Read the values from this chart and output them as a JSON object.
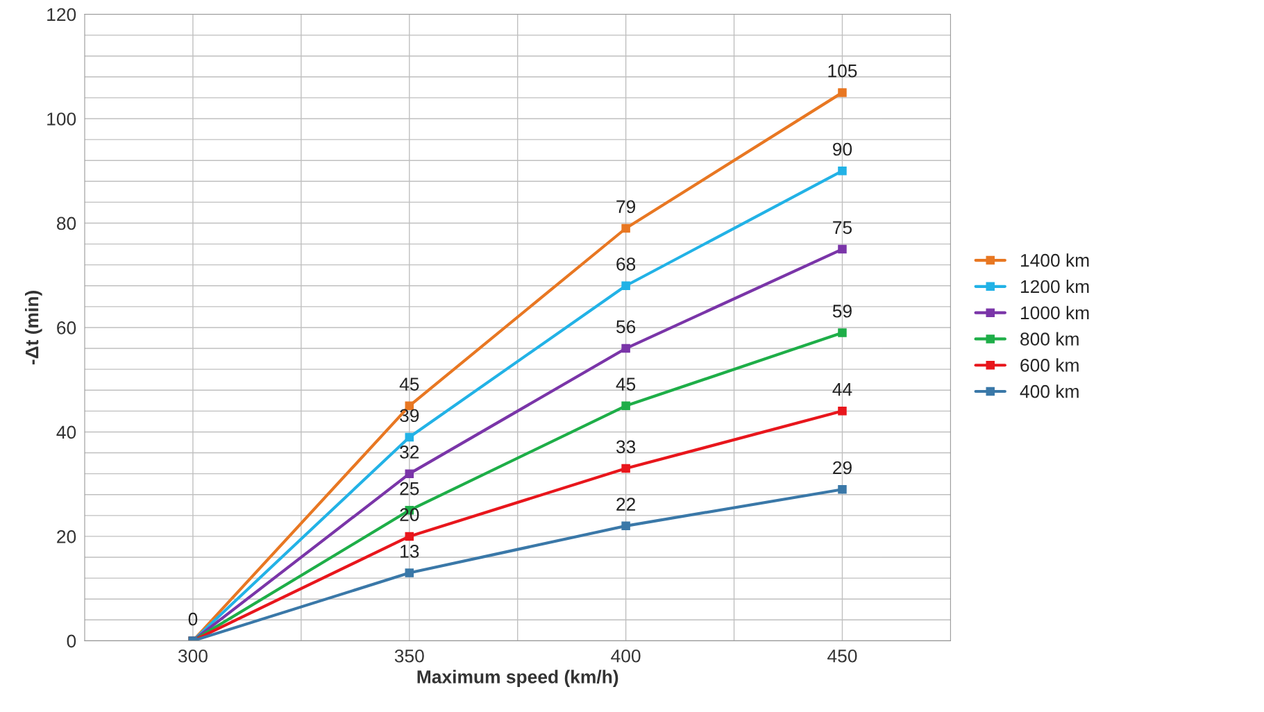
{
  "chart_data": {
    "type": "line",
    "xlabel": "Maximum speed (km/h)",
    "ylabel": "-Δt (min)",
    "x": [
      300,
      350,
      400,
      450
    ],
    "series": [
      {
        "name": "1400 km",
        "color": "#e87722",
        "values": [
          0,
          45,
          79,
          105
        ]
      },
      {
        "name": "1200 km",
        "color": "#22b2e6",
        "values": [
          0,
          39,
          68,
          90
        ],
        "value_labels": [
          null,
          "39",
          "68",
          "90"
        ]
      },
      {
        "name": "1000 km",
        "color": "#7a35a8",
        "values": [
          0,
          32,
          56,
          75
        ],
        "value_labels": [
          null,
          "32",
          "56",
          "75"
        ]
      },
      {
        "name": "800 km",
        "color": "#1eae48",
        "values": [
          0,
          25,
          45,
          59
        ],
        "value_labels": [
          null,
          "25",
          "45",
          "59"
        ]
      },
      {
        "name": "600 km",
        "color": "#e8161c",
        "values": [
          0,
          20,
          33,
          44
        ],
        "value_labels": [
          null,
          "20",
          "33",
          "44"
        ]
      },
      {
        "name": "400 km",
        "color": "#3a78a8",
        "values": [
          0,
          13,
          22,
          29
        ],
        "value_labels": [
          null,
          "13",
          "22",
          "29"
        ]
      }
    ],
    "xlim": [
      275,
      475
    ],
    "xticks": [
      300,
      {
        "value": 325,
        "label": null
      },
      350,
      {
        "value": 375,
        "label": null
      },
      400,
      {
        "value": 425,
        "label": null
      },
      450
    ],
    "ylim": [
      0,
      120
    ],
    "yticks": [
      0,
      {
        "value": 4,
        "label": null
      },
      {
        "value": 8,
        "label": null
      },
      {
        "value": 12,
        "label": null
      },
      {
        "value": 16,
        "label": null
      },
      20,
      {
        "value": 24,
        "label": null
      },
      {
        "value": 28,
        "label": null
      },
      {
        "value": 32,
        "label": null
      },
      {
        "value": 36,
        "label": null
      },
      40,
      {
        "value": 44,
        "label": null
      },
      {
        "value": 48,
        "label": null
      },
      {
        "value": 52,
        "label": null
      },
      {
        "value": 56,
        "label": null
      },
      60,
      {
        "value": 64,
        "label": null
      },
      {
        "value": 68,
        "label": null
      },
      {
        "value": 72,
        "label": null
      },
      {
        "value": 76,
        "label": null
      },
      80,
      {
        "value": 84,
        "label": null
      },
      {
        "value": 88,
        "label": null
      },
      {
        "value": 92,
        "label": null
      },
      {
        "value": 96,
        "label": null
      },
      100,
      {
        "value": 104,
        "label": null
      },
      {
        "value": 108,
        "label": null
      },
      {
        "value": 112,
        "label": null
      },
      {
        "value": 116,
        "label": null
      },
      120
    ],
    "grid": true,
    "legend": "right",
    "marker": "square",
    "line_style": "solid",
    "data_labels": true
  }
}
